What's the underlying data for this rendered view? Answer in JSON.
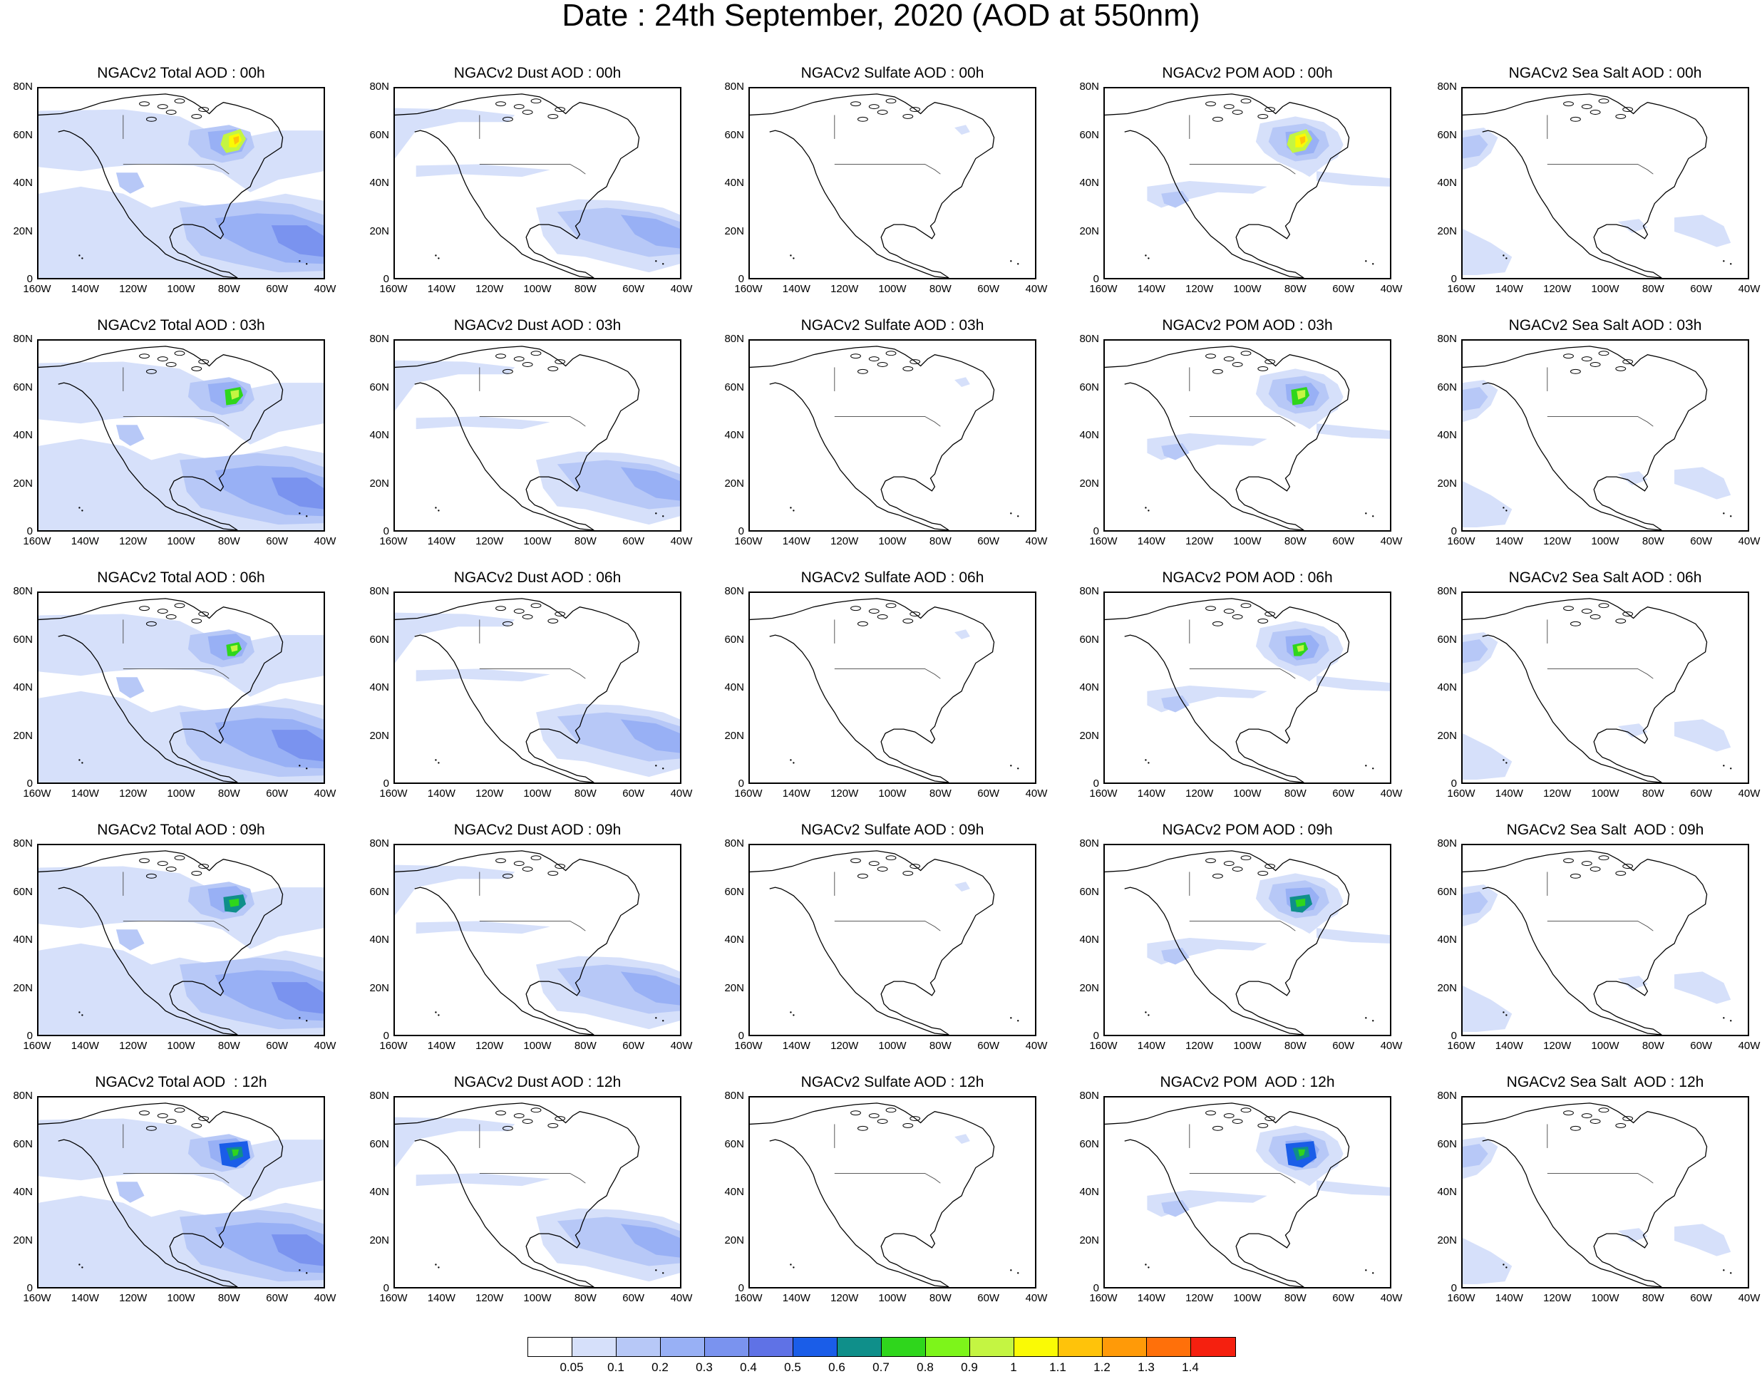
{
  "title": "Date : 24th September, 2020 (AOD at 550nm)",
  "lat_ticks": [
    "80N",
    "60N",
    "40N",
    "20N",
    "0"
  ],
  "lon_ticks": [
    "160W",
    "140W",
    "120W",
    "100W",
    "80W",
    "60W",
    "40W"
  ],
  "panels": [
    [
      "NGACv2 Total AOD : 00h",
      "NGACv2 Dust AOD : 00h",
      "NGACv2 Sulfate AOD : 00h",
      "NGACv2 POM AOD : 00h",
      "NGACv2 Sea Salt AOD : 00h"
    ],
    [
      "NGACv2 Total AOD : 03h",
      "NGACv2 Dust AOD : 03h",
      "NGACv2 Sulfate AOD : 03h",
      "NGACv2 POM AOD : 03h",
      "NGACv2 Sea Salt AOD : 03h"
    ],
    [
      "NGACv2 Total AOD : 06h",
      "NGACv2 Dust AOD : 06h",
      "NGACv2 Sulfate AOD : 06h",
      "NGACv2 POM AOD : 06h",
      "NGACv2 Sea Salt AOD : 06h"
    ],
    [
      "NGACv2 Total AOD : 09h",
      "NGACv2 Dust AOD : 09h",
      "NGACv2 Sulfate AOD : 09h",
      "NGACv2 POM AOD : 09h",
      "NGACv2 Sea Salt  AOD : 09h"
    ],
    [
      "NGACv2 Total AOD  : 12h",
      "NGACv2 Dust AOD : 12h",
      "NGACv2 Sulfate AOD : 12h",
      "NGACv2 POM  AOD : 12h",
      "NGACv2 Sea Salt  AOD : 12h"
    ]
  ],
  "colorbar": {
    "labels": [
      "0.05",
      "0.1",
      "0.2",
      "0.3",
      "0.4",
      "0.5",
      "0.6",
      "0.7",
      "0.8",
      "0.9",
      "1",
      "1.1",
      "1.2",
      "1.3",
      "1.4"
    ],
    "colors": [
      "#ffffff",
      "#d6e0fa",
      "#b7c8f7",
      "#98b0f5",
      "#7a93ef",
      "#5f72e6",
      "#1a5de8",
      "#0f8f8a",
      "#2fd61c",
      "#7df51a",
      "#c4f542",
      "#fafa05",
      "#ffc30a",
      "#ff9a08",
      "#ff700a",
      "#f5200f"
    ]
  }
}
